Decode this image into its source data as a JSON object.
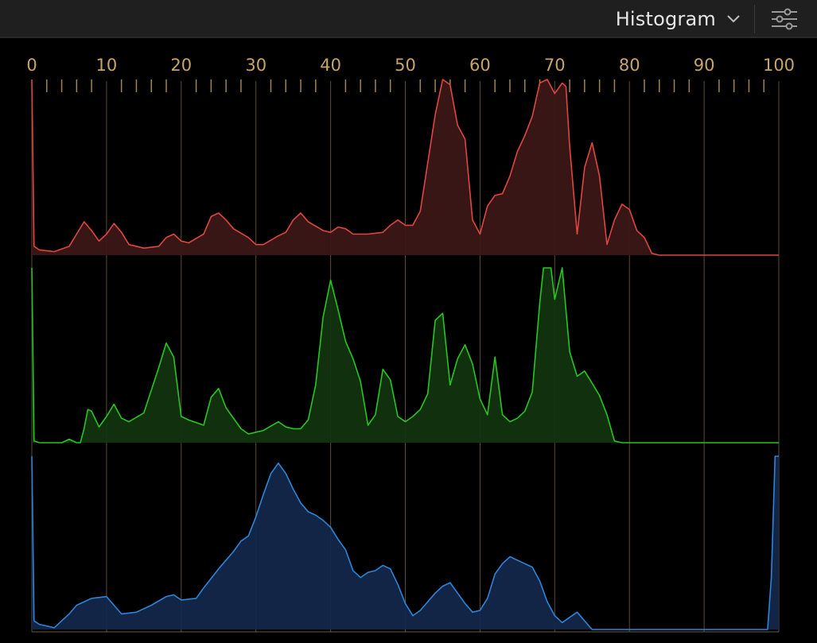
{
  "header": {
    "title": "Histogram",
    "dropdown_icon": "chevron-down-icon",
    "settings_icon": "sliders-icon"
  },
  "colors": {
    "background": "#000000",
    "header_bg": "#1f1f1f",
    "tick_label": "#c8a465",
    "gridline": "#6e5a3a",
    "red": "#e0463f",
    "red_fill": "#3a1716",
    "green": "#27c61f",
    "green_fill": "#12330f",
    "blue": "#2b86d9",
    "blue_fill": "#14274a"
  },
  "chart_data": {
    "type": "area",
    "title": "Histogram",
    "xlim": [
      0,
      100
    ],
    "x_ticks": [
      0,
      10,
      20,
      30,
      40,
      50,
      60,
      70,
      80,
      90,
      100
    ],
    "minor_tick_step": 2,
    "grid": true,
    "ylim": [
      0,
      1
    ],
    "series": [
      {
        "channel": "red",
        "points": [
          [
            0,
            1.0
          ],
          [
            0.3,
            0.05
          ],
          [
            1,
            0.03
          ],
          [
            3,
            0.02
          ],
          [
            5,
            0.05
          ],
          [
            6,
            0.12
          ],
          [
            7,
            0.19
          ],
          [
            8,
            0.14
          ],
          [
            9,
            0.08
          ],
          [
            10,
            0.12
          ],
          [
            11,
            0.18
          ],
          [
            12,
            0.13
          ],
          [
            13,
            0.06
          ],
          [
            15,
            0.04
          ],
          [
            17,
            0.05
          ],
          [
            18,
            0.1
          ],
          [
            19,
            0.12
          ],
          [
            20,
            0.08
          ],
          [
            21,
            0.07
          ],
          [
            23,
            0.12
          ],
          [
            24,
            0.22
          ],
          [
            25,
            0.24
          ],
          [
            26,
            0.2
          ],
          [
            27,
            0.15
          ],
          [
            29,
            0.1
          ],
          [
            30,
            0.06
          ],
          [
            31,
            0.06
          ],
          [
            33,
            0.11
          ],
          [
            34,
            0.13
          ],
          [
            35,
            0.2
          ],
          [
            36,
            0.24
          ],
          [
            37,
            0.19
          ],
          [
            39,
            0.14
          ],
          [
            40,
            0.13
          ],
          [
            41,
            0.16
          ],
          [
            42,
            0.15
          ],
          [
            43,
            0.12
          ],
          [
            45,
            0.12
          ],
          [
            47,
            0.13
          ],
          [
            48,
            0.17
          ],
          [
            49,
            0.2
          ],
          [
            50,
            0.17
          ],
          [
            51,
            0.17
          ],
          [
            52,
            0.25
          ],
          [
            54,
            0.8
          ],
          [
            55,
            1.0
          ],
          [
            56,
            0.97
          ],
          [
            57,
            0.74
          ],
          [
            58,
            0.66
          ],
          [
            59,
            0.2
          ],
          [
            60,
            0.12
          ],
          [
            61,
            0.28
          ],
          [
            62,
            0.34
          ],
          [
            63,
            0.35
          ],
          [
            64,
            0.45
          ],
          [
            65,
            0.59
          ],
          [
            66,
            0.68
          ],
          [
            67,
            0.79
          ],
          [
            68,
            0.98
          ],
          [
            69,
            1.0
          ],
          [
            70,
            0.92
          ],
          [
            70.5,
            0.95
          ],
          [
            71,
            0.98
          ],
          [
            71.5,
            0.96
          ],
          [
            72,
            0.62
          ],
          [
            73,
            0.12
          ],
          [
            74,
            0.5
          ],
          [
            75,
            0.64
          ],
          [
            76,
            0.45
          ],
          [
            77,
            0.06
          ],
          [
            78,
            0.2
          ],
          [
            79,
            0.29
          ],
          [
            80,
            0.26
          ],
          [
            81,
            0.14
          ],
          [
            82,
            0.1
          ],
          [
            83,
            0.01
          ],
          [
            84,
            0.0
          ],
          [
            100,
            0.0
          ]
        ]
      },
      {
        "channel": "green",
        "points": [
          [
            0,
            1.0
          ],
          [
            0.3,
            0.01
          ],
          [
            1,
            0.0
          ],
          [
            4,
            0.0
          ],
          [
            5,
            0.02
          ],
          [
            6,
            0.0
          ],
          [
            6.5,
            0.0
          ],
          [
            7,
            0.08
          ],
          [
            7.5,
            0.19
          ],
          [
            8,
            0.18
          ],
          [
            9,
            0.09
          ],
          [
            10,
            0.15
          ],
          [
            11,
            0.22
          ],
          [
            12,
            0.14
          ],
          [
            13,
            0.12
          ],
          [
            15,
            0.17
          ],
          [
            17,
            0.43
          ],
          [
            18,
            0.57
          ],
          [
            19,
            0.49
          ],
          [
            20,
            0.15
          ],
          [
            21,
            0.13
          ],
          [
            23,
            0.1
          ],
          [
            24,
            0.26
          ],
          [
            25,
            0.31
          ],
          [
            26,
            0.2
          ],
          [
            28,
            0.08
          ],
          [
            29,
            0.05
          ],
          [
            30,
            0.06
          ],
          [
            31,
            0.07
          ],
          [
            33,
            0.12
          ],
          [
            34,
            0.09
          ],
          [
            35,
            0.08
          ],
          [
            36,
            0.08
          ],
          [
            37,
            0.13
          ],
          [
            38,
            0.33
          ],
          [
            39,
            0.72
          ],
          [
            40,
            0.93
          ],
          [
            41,
            0.76
          ],
          [
            42,
            0.58
          ],
          [
            43,
            0.48
          ],
          [
            44,
            0.35
          ],
          [
            45,
            0.1
          ],
          [
            46,
            0.16
          ],
          [
            47,
            0.42
          ],
          [
            48,
            0.36
          ],
          [
            49,
            0.15
          ],
          [
            50,
            0.12
          ],
          [
            51,
            0.15
          ],
          [
            52,
            0.19
          ],
          [
            53,
            0.28
          ],
          [
            54,
            0.7
          ],
          [
            55,
            0.74
          ],
          [
            56,
            0.33
          ],
          [
            57,
            0.48
          ],
          [
            58,
            0.56
          ],
          [
            59,
            0.45
          ],
          [
            60,
            0.25
          ],
          [
            61,
            0.16
          ],
          [
            62,
            0.49
          ],
          [
            63,
            0.16
          ],
          [
            64,
            0.12
          ],
          [
            65,
            0.14
          ],
          [
            66,
            0.18
          ],
          [
            67,
            0.29
          ],
          [
            68,
            0.8
          ],
          [
            68.5,
            1.0
          ],
          [
            69.5,
            1.0
          ],
          [
            70,
            0.82
          ],
          [
            71,
            1.0
          ],
          [
            72,
            0.52
          ],
          [
            73,
            0.38
          ],
          [
            74,
            0.41
          ],
          [
            75,
            0.34
          ],
          [
            76,
            0.27
          ],
          [
            77,
            0.16
          ],
          [
            78,
            0.01
          ],
          [
            79,
            0.0
          ],
          [
            100,
            0.0
          ]
        ]
      },
      {
        "channel": "blue",
        "points": [
          [
            0,
            1.0
          ],
          [
            0.3,
            0.05
          ],
          [
            1,
            0.03
          ],
          [
            3,
            0.01
          ],
          [
            4,
            0.05
          ],
          [
            5,
            0.09
          ],
          [
            6,
            0.14
          ],
          [
            8,
            0.18
          ],
          [
            10,
            0.19
          ],
          [
            11,
            0.14
          ],
          [
            12,
            0.09
          ],
          [
            14,
            0.1
          ],
          [
            16,
            0.14
          ],
          [
            18,
            0.19
          ],
          [
            19,
            0.2
          ],
          [
            20,
            0.17
          ],
          [
            22,
            0.18
          ],
          [
            23,
            0.24
          ],
          [
            25,
            0.35
          ],
          [
            27,
            0.45
          ],
          [
            28,
            0.51
          ],
          [
            29,
            0.54
          ],
          [
            30,
            0.65
          ],
          [
            31,
            0.78
          ],
          [
            32,
            0.9
          ],
          [
            33,
            0.96
          ],
          [
            34,
            0.9
          ],
          [
            35,
            0.81
          ],
          [
            36,
            0.73
          ],
          [
            37,
            0.68
          ],
          [
            38,
            0.66
          ],
          [
            39,
            0.63
          ],
          [
            40,
            0.59
          ],
          [
            41,
            0.52
          ],
          [
            42,
            0.46
          ],
          [
            43,
            0.34
          ],
          [
            44,
            0.3
          ],
          [
            45,
            0.33
          ],
          [
            46,
            0.34
          ],
          [
            47,
            0.37
          ],
          [
            48,
            0.35
          ],
          [
            49,
            0.26
          ],
          [
            50,
            0.15
          ],
          [
            51,
            0.08
          ],
          [
            52,
            0.11
          ],
          [
            53,
            0.16
          ],
          [
            54,
            0.21
          ],
          [
            55,
            0.25
          ],
          [
            56,
            0.27
          ],
          [
            57,
            0.21
          ],
          [
            58,
            0.15
          ],
          [
            59,
            0.1
          ],
          [
            60,
            0.11
          ],
          [
            61,
            0.18
          ],
          [
            62,
            0.32
          ],
          [
            63,
            0.38
          ],
          [
            64,
            0.42
          ],
          [
            65,
            0.4
          ],
          [
            66,
            0.38
          ],
          [
            67,
            0.36
          ],
          [
            68,
            0.28
          ],
          [
            69,
            0.16
          ],
          [
            70,
            0.08
          ],
          [
            71,
            0.04
          ],
          [
            72,
            0.07
          ],
          [
            73,
            0.1
          ],
          [
            74,
            0.05
          ],
          [
            75,
            0.0
          ],
          [
            98.5,
            0.0
          ],
          [
            99,
            0.3
          ],
          [
            99.5,
            1.0
          ],
          [
            100,
            1.0
          ]
        ]
      }
    ]
  }
}
